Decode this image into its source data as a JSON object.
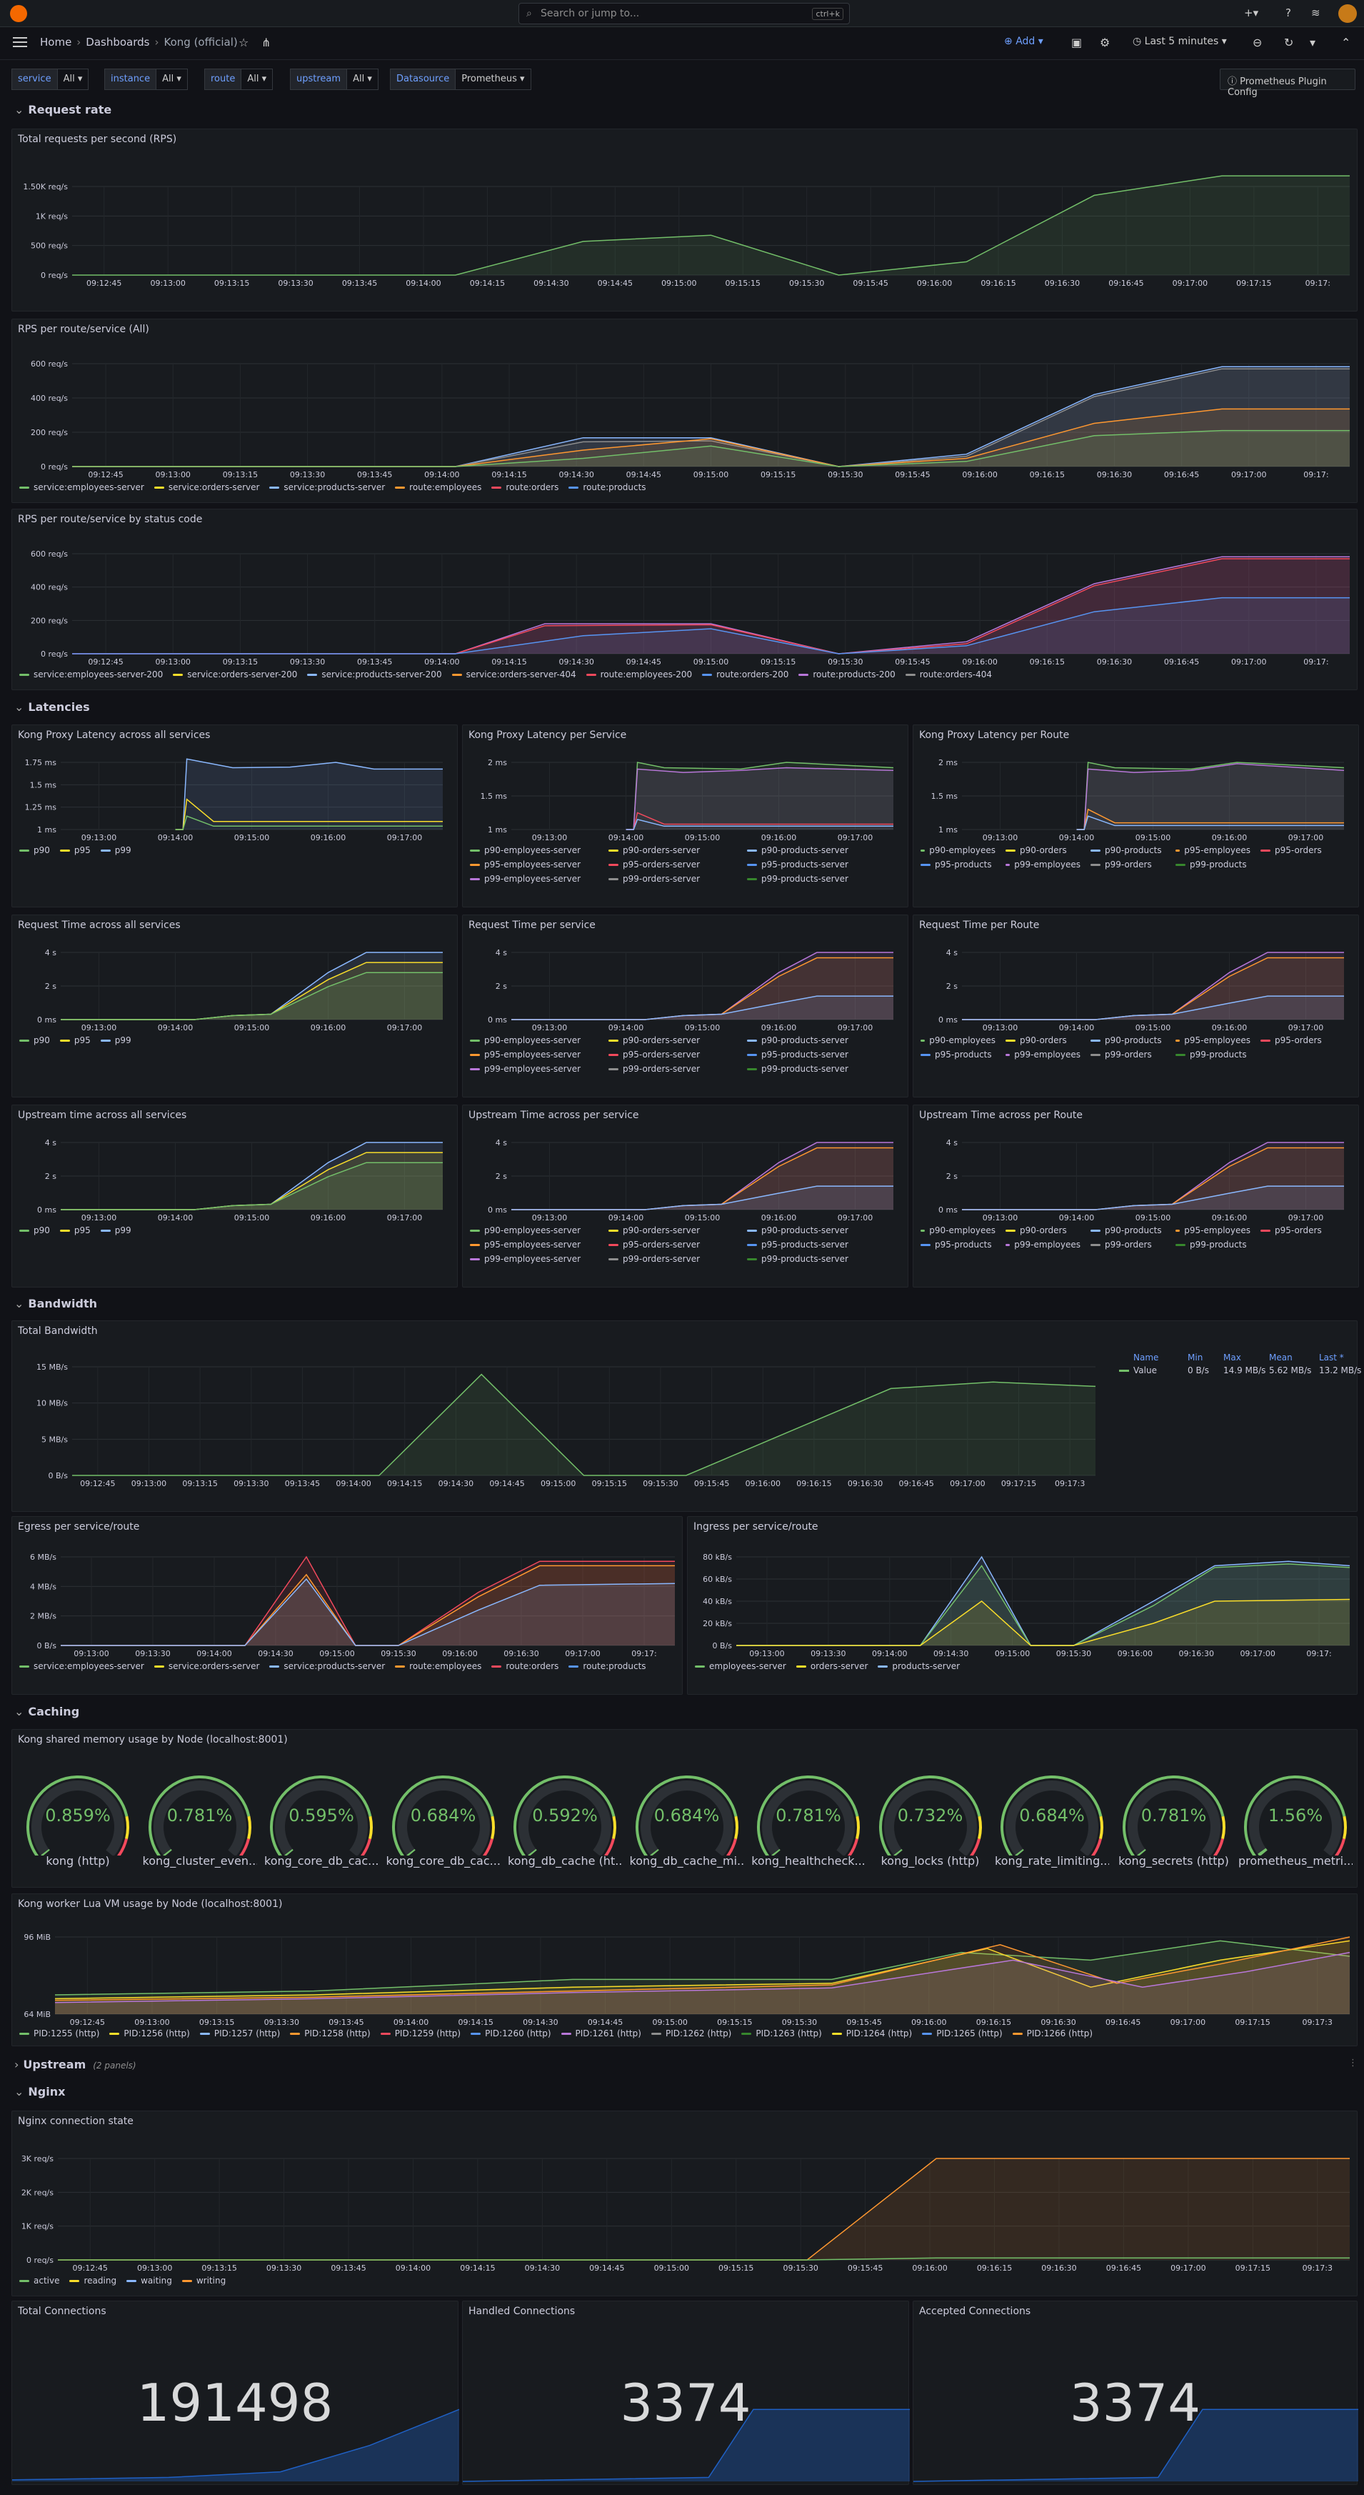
{
  "search": {
    "placeholder": "Search or jump to...",
    "shortcut": "ctrl+k"
  },
  "breadcrumb": {
    "home": "Home",
    "dashboards": "Dashboards",
    "current": "Kong (official)"
  },
  "toolbar": {
    "add_label": "Add",
    "time_range": "Last 5 minutes"
  },
  "variables": [
    {
      "label": "service",
      "value": "All"
    },
    {
      "label": "instance",
      "value": "All"
    },
    {
      "label": "route",
      "value": "All"
    },
    {
      "label": "upstream",
      "value": "All"
    },
    {
      "label": "Datasource",
      "value": "Prometheus"
    }
  ],
  "plugin_config_label": "Prometheus Plugin Config",
  "rows": {
    "request_rate": "Request rate",
    "latencies": "Latencies",
    "bandwidth": "Bandwidth",
    "caching": "Caching",
    "upstream": "Upstream",
    "upstream_sub": "(2 panels)",
    "nginx": "Nginx"
  },
  "colors": {
    "green": "#73bf69",
    "yellow": "#fade2a",
    "blue": "#8ab8ff",
    "orange": "#ff9830",
    "red": "#f2495c",
    "lblue": "#5794f2",
    "purple": "#b877d9",
    "grey": "#8e8e8e",
    "dgreen": "#37872d"
  },
  "panels": {
    "total_rps": {
      "title": "Total requests per second (RPS)",
      "ylabels": [
        "1.50K req/s",
        "1K req/s",
        "500 req/s",
        "0 req/s"
      ],
      "xlabels": [
        "09:12:45",
        "09:13:00",
        "09:13:15",
        "09:13:30",
        "09:13:45",
        "09:14:00",
        "09:14:15",
        "09:14:30",
        "09:14:45",
        "09:15:00",
        "09:15:15",
        "09:15:30",
        "09:15:45",
        "09:16:00",
        "09:16:15",
        "09:16:30",
        "09:16:45",
        "09:17:00",
        "09:17:15",
        "09:17:"
      ]
    },
    "rps_route": {
      "title": "RPS per route/service (All)",
      "ylabels": [
        "600 req/s",
        "400 req/s",
        "200 req/s",
        "0 req/s"
      ],
      "xlabels": [
        "09:12:45",
        "09:13:00",
        "09:13:15",
        "09:13:30",
        "09:13:45",
        "09:14:00",
        "09:14:15",
        "09:14:30",
        "09:14:45",
        "09:15:00",
        "09:15:15",
        "09:15:30",
        "09:15:45",
        "09:16:00",
        "09:16:15",
        "09:16:30",
        "09:16:45",
        "09:17:00",
        "09:17:"
      ],
      "legend": [
        {
          "name": "service:employees-server",
          "color": "#73bf69"
        },
        {
          "name": "service:orders-server",
          "color": "#fade2a"
        },
        {
          "name": "service:products-server",
          "color": "#8ab8ff"
        },
        {
          "name": "route:employees",
          "color": "#ff9830"
        },
        {
          "name": "route:orders",
          "color": "#f2495c"
        },
        {
          "name": "route:products",
          "color": "#5794f2"
        }
      ]
    },
    "rps_status": {
      "title": "RPS per route/service by status code",
      "ylabels": [
        "600 req/s",
        "400 req/s",
        "200 req/s",
        "0 req/s"
      ],
      "xlabels": [
        "09:12:45",
        "09:13:00",
        "09:13:15",
        "09:13:30",
        "09:13:45",
        "09:14:00",
        "09:14:15",
        "09:14:30",
        "09:14:45",
        "09:15:00",
        "09:15:15",
        "09:15:30",
        "09:15:45",
        "09:16:00",
        "09:16:15",
        "09:16:30",
        "09:16:45",
        "09:17:00",
        "09:17:"
      ],
      "legend": [
        {
          "name": "service:employees-server-200",
          "color": "#73bf69"
        },
        {
          "name": "service:orders-server-200",
          "color": "#fade2a"
        },
        {
          "name": "service:products-server-200",
          "color": "#8ab8ff"
        },
        {
          "name": "service:orders-server-404",
          "color": "#ff9830"
        },
        {
          "name": "route:employees-200",
          "color": "#f2495c"
        },
        {
          "name": "route:orders-200",
          "color": "#5794f2"
        },
        {
          "name": "route:products-200",
          "color": "#b877d9"
        },
        {
          "name": "route:orders-404",
          "color": "#8e8e8e"
        }
      ]
    },
    "proxy_all": {
      "title": "Kong Proxy Latency across all services",
      "ylabels": [
        "1.75 ms",
        "1.5 ms",
        "1.25 ms",
        "1 ms"
      ],
      "xlabels": [
        "09:13:00",
        "09:14:00",
        "09:15:00",
        "09:16:00",
        "09:17:00"
      ],
      "legend": [
        {
          "name": "p90",
          "color": "#73bf69"
        },
        {
          "name": "p95",
          "color": "#fade2a"
        },
        {
          "name": "p99",
          "color": "#8ab8ff"
        }
      ]
    },
    "proxy_service": {
      "title": "Kong Proxy Latency per Service",
      "ylabels": [
        "2 ms",
        "1.5 ms",
        "1 ms"
      ],
      "xlabels": [
        "09:13:00",
        "09:14:00",
        "09:15:00",
        "09:16:00",
        "09:17:00"
      ],
      "legend": [
        {
          "name": "p90-employees-server",
          "color": "#73bf69"
        },
        {
          "name": "p90-orders-server",
          "color": "#fade2a"
        },
        {
          "name": "p90-products-server",
          "color": "#8ab8ff"
        },
        {
          "name": "p95-employees-server",
          "color": "#ff9830"
        },
        {
          "name": "p95-orders-server",
          "color": "#f2495c"
        },
        {
          "name": "p95-products-server",
          "color": "#5794f2"
        },
        {
          "name": "p99-employees-server",
          "color": "#b877d9"
        },
        {
          "name": "p99-orders-server",
          "color": "#8e8e8e"
        },
        {
          "name": "p99-products-server",
          "color": "#37872d"
        }
      ]
    },
    "proxy_route": {
      "title": "Kong Proxy Latency per Route",
      "ylabels": [
        "2 ms",
        "1.5 ms",
        "1 ms"
      ],
      "xlabels": [
        "09:13:00",
        "09:14:00",
        "09:15:00",
        "09:16:00",
        "09:17:00"
      ],
      "legend": [
        {
          "name": "p90-employees",
          "color": "#73bf69"
        },
        {
          "name": "p90-orders",
          "color": "#fade2a"
        },
        {
          "name": "p90-products",
          "color": "#8ab8ff"
        },
        {
          "name": "p95-employees",
          "color": "#ff9830"
        },
        {
          "name": "p95-orders",
          "color": "#f2495c"
        },
        {
          "name": "p95-products",
          "color": "#5794f2"
        },
        {
          "name": "p99-employees",
          "color": "#b877d9"
        },
        {
          "name": "p99-orders",
          "color": "#8e8e8e"
        },
        {
          "name": "p99-products",
          "color": "#37872d"
        }
      ]
    },
    "req_all": {
      "title": "Request Time across all services",
      "ylabels": [
        "4 s",
        "2 s",
        "0 ms"
      ],
      "xlabels": [
        "09:13:00",
        "09:14:00",
        "09:15:00",
        "09:16:00",
        "09:17:00"
      ],
      "legend": [
        {
          "name": "p90",
          "color": "#73bf69"
        },
        {
          "name": "p95",
          "color": "#fade2a"
        },
        {
          "name": "p99",
          "color": "#8ab8ff"
        }
      ]
    },
    "req_service": {
      "title": "Request Time per service",
      "ylabels": [
        "4 s",
        "2 s",
        "0 ms"
      ],
      "xlabels": [
        "09:13:00",
        "09:14:00",
        "09:15:00",
        "09:16:00",
        "09:17:00"
      ],
      "legend": [
        {
          "name": "p90-employees-server",
          "color": "#73bf69"
        },
        {
          "name": "p90-orders-server",
          "color": "#fade2a"
        },
        {
          "name": "p90-products-server",
          "color": "#8ab8ff"
        },
        {
          "name": "p95-employees-server",
          "color": "#ff9830"
        },
        {
          "name": "p95-orders-server",
          "color": "#f2495c"
        },
        {
          "name": "p95-products-server",
          "color": "#5794f2"
        },
        {
          "name": "p99-employees-server",
          "color": "#b877d9"
        },
        {
          "name": "p99-orders-server",
          "color": "#8e8e8e"
        },
        {
          "name": "p99-products-server",
          "color": "#37872d"
        }
      ]
    },
    "req_route": {
      "title": "Request Time per Route",
      "ylabels": [
        "4 s",
        "2 s",
        "0 ms"
      ],
      "xlabels": [
        "09:13:00",
        "09:14:00",
        "09:15:00",
        "09:16:00",
        "09:17:00"
      ],
      "legend": [
        {
          "name": "p90-employees",
          "color": "#73bf69"
        },
        {
          "name": "p90-orders",
          "color": "#fade2a"
        },
        {
          "name": "p90-products",
          "color": "#8ab8ff"
        },
        {
          "name": "p95-employees",
          "color": "#ff9830"
        },
        {
          "name": "p95-orders",
          "color": "#f2495c"
        },
        {
          "name": "p95-products",
          "color": "#5794f2"
        },
        {
          "name": "p99-employees",
          "color": "#b877d9"
        },
        {
          "name": "p99-orders",
          "color": "#8e8e8e"
        },
        {
          "name": "p99-products",
          "color": "#37872d"
        }
      ]
    },
    "up_all": {
      "title": "Upstream time across all services",
      "ylabels": [
        "4 s",
        "2 s",
        "0 ms"
      ],
      "xlabels": [
        "09:13:00",
        "09:14:00",
        "09:15:00",
        "09:16:00",
        "09:17:00"
      ],
      "legend": [
        {
          "name": "p90",
          "color": "#73bf69"
        },
        {
          "name": "p95",
          "color": "#fade2a"
        },
        {
          "name": "p99",
          "color": "#8ab8ff"
        }
      ]
    },
    "up_service": {
      "title": "Upstream Time across per service",
      "ylabels": [
        "4 s",
        "2 s",
        "0 ms"
      ],
      "xlabels": [
        "09:13:00",
        "09:14:00",
        "09:15:00",
        "09:16:00",
        "09:17:00"
      ],
      "legend": [
        {
          "name": "p90-employees-server",
          "color": "#73bf69"
        },
        {
          "name": "p90-orders-server",
          "color": "#fade2a"
        },
        {
          "name": "p90-products-server",
          "color": "#8ab8ff"
        },
        {
          "name": "p95-employees-server",
          "color": "#ff9830"
        },
        {
          "name": "p95-orders-server",
          "color": "#f2495c"
        },
        {
          "name": "p95-products-server",
          "color": "#5794f2"
        },
        {
          "name": "p99-employees-server",
          "color": "#b877d9"
        },
        {
          "name": "p99-orders-server",
          "color": "#8e8e8e"
        },
        {
          "name": "p99-products-server",
          "color": "#37872d"
        }
      ]
    },
    "up_route": {
      "title": "Upstream Time across per Route",
      "ylabels": [
        "4 s",
        "2 s",
        "0 ms"
      ],
      "xlabels": [
        "09:13:00",
        "09:14:00",
        "09:15:00",
        "09:16:00",
        "09:17:00"
      ],
      "legend": [
        {
          "name": "p90-employees",
          "color": "#73bf69"
        },
        {
          "name": "p90-orders",
          "color": "#fade2a"
        },
        {
          "name": "p90-products",
          "color": "#8ab8ff"
        },
        {
          "name": "p95-employees",
          "color": "#ff9830"
        },
        {
          "name": "p95-orders",
          "color": "#f2495c"
        },
        {
          "name": "p95-products",
          "color": "#5794f2"
        },
        {
          "name": "p99-employees",
          "color": "#b877d9"
        },
        {
          "name": "p99-orders",
          "color": "#8e8e8e"
        },
        {
          "name": "p99-products",
          "color": "#37872d"
        }
      ]
    },
    "bandwidth": {
      "title": "Total Bandwidth",
      "ylabels": [
        "15 MB/s",
        "10 MB/s",
        "5 MB/s",
        "0 B/s"
      ],
      "xlabels": [
        "09:12:45",
        "09:13:00",
        "09:13:15",
        "09:13:30",
        "09:13:45",
        "09:14:00",
        "09:14:15",
        "09:14:30",
        "09:14:45",
        "09:15:00",
        "09:15:15",
        "09:15:30",
        "09:15:45",
        "09:16:00",
        "09:16:15",
        "09:16:30",
        "09:16:45",
        "09:17:00",
        "09:17:15",
        "09:17:3"
      ],
      "table_headers": [
        "Name",
        "Min",
        "Max",
        "Mean",
        "Last *"
      ],
      "table_row": [
        "Value",
        "0 B/s",
        "14.9 MB/s",
        "5.62 MB/s",
        "13.2 MB/s"
      ]
    },
    "egress": {
      "title": "Egress per service/route",
      "ylabels": [
        "6 MB/s",
        "4 MB/s",
        "2 MB/s",
        "0 B/s"
      ],
      "xlabels": [
        "09:13:00",
        "09:13:30",
        "09:14:00",
        "09:14:30",
        "09:15:00",
        "09:15:30",
        "09:16:00",
        "09:16:30",
        "09:17:00",
        "09:17:"
      ],
      "legend": [
        {
          "name": "service:employees-server",
          "color": "#73bf69"
        },
        {
          "name": "service:orders-server",
          "color": "#fade2a"
        },
        {
          "name": "service:products-server",
          "color": "#8ab8ff"
        },
        {
          "name": "route:employees",
          "color": "#ff9830"
        },
        {
          "name": "route:orders",
          "color": "#f2495c"
        },
        {
          "name": "route:products",
          "color": "#5794f2"
        }
      ]
    },
    "ingress": {
      "title": "Ingress per service/route",
      "ylabels": [
        "80 kB/s",
        "60 kB/s",
        "40 kB/s",
        "20 kB/s",
        "0 B/s"
      ],
      "xlabels": [
        "09:13:00",
        "09:13:30",
        "09:14:00",
        "09:14:30",
        "09:15:00",
        "09:15:30",
        "09:16:00",
        "09:16:30",
        "09:17:00",
        "09:17:"
      ],
      "legend": [
        {
          "name": "employees-server",
          "color": "#73bf69"
        },
        {
          "name": "orders-server",
          "color": "#fade2a"
        },
        {
          "name": "products-server",
          "color": "#8ab8ff"
        }
      ]
    },
    "shm": {
      "title": "Kong shared memory usage by Node (localhost:8001)",
      "gauges": [
        {
          "value": "0.859%",
          "label": "kong (http)",
          "pct": 0.00859
        },
        {
          "value": "0.781%",
          "label": "kong_cluster_even...",
          "pct": 0.00781
        },
        {
          "value": "0.595%",
          "label": "kong_core_db_cac...",
          "pct": 0.00595
        },
        {
          "value": "0.684%",
          "label": "kong_core_db_cac...",
          "pct": 0.00684
        },
        {
          "value": "0.592%",
          "label": "kong_db_cache (ht...",
          "pct": 0.00592
        },
        {
          "value": "0.684%",
          "label": "kong_db_cache_mi...",
          "pct": 0.00684
        },
        {
          "value": "0.781%",
          "label": "kong_healthcheck...",
          "pct": 0.00781
        },
        {
          "value": "0.732%",
          "label": "kong_locks (http)",
          "pct": 0.00732
        },
        {
          "value": "0.684%",
          "label": "kong_rate_limiting...",
          "pct": 0.00684
        },
        {
          "value": "0.781%",
          "label": "kong_secrets (http)",
          "pct": 0.00781
        },
        {
          "value": "1.56%",
          "label": "prometheus_metri...",
          "pct": 0.0156
        }
      ]
    },
    "lua": {
      "title": "Kong worker Lua VM usage by Node (localhost:8001)",
      "ylabels": [
        "96 MiB",
        "64 MiB"
      ],
      "xlabels": [
        "09:12:45",
        "09:13:00",
        "09:13:15",
        "09:13:30",
        "09:13:45",
        "09:14:00",
        "09:14:15",
        "09:14:30",
        "09:14:45",
        "09:15:00",
        "09:15:15",
        "09:15:30",
        "09:15:45",
        "09:16:00",
        "09:16:15",
        "09:16:30",
        "09:16:45",
        "09:17:00",
        "09:17:15",
        "09:17:3"
      ],
      "legend": [
        {
          "name": "PID:1255 (http)",
          "color": "#73bf69"
        },
        {
          "name": "PID:1256 (http)",
          "color": "#fade2a"
        },
        {
          "name": "PID:1257 (http)",
          "color": "#8ab8ff"
        },
        {
          "name": "PID:1258 (http)",
          "color": "#ff9830"
        },
        {
          "name": "PID:1259 (http)",
          "color": "#f2495c"
        },
        {
          "name": "PID:1260 (http)",
          "color": "#5794f2"
        },
        {
          "name": "PID:1261 (http)",
          "color": "#b877d9"
        },
        {
          "name": "PID:1262 (http)",
          "color": "#8e8e8e"
        },
        {
          "name": "PID:1263 (http)",
          "color": "#37872d"
        },
        {
          "name": "PID:1264 (http)",
          "color": "#fade2a"
        },
        {
          "name": "PID:1265 (http)",
          "color": "#5794f2"
        },
        {
          "name": "PID:1266 (http)",
          "color": "#ff9830"
        }
      ]
    },
    "nginx": {
      "title": "Nginx connection state",
      "ylabels": [
        "3K req/s",
        "2K req/s",
        "1K req/s",
        "0 req/s"
      ],
      "xlabels": [
        "09:12:45",
        "09:13:00",
        "09:13:15",
        "09:13:30",
        "09:13:45",
        "09:14:00",
        "09:14:15",
        "09:14:30",
        "09:14:45",
        "09:15:00",
        "09:15:15",
        "09:15:30",
        "09:15:45",
        "09:16:00",
        "09:16:15",
        "09:16:30",
        "09:16:45",
        "09:17:00",
        "09:17:15",
        "09:17:3"
      ],
      "legend": [
        {
          "name": "active",
          "color": "#73bf69"
        },
        {
          "name": "reading",
          "color": "#fade2a"
        },
        {
          "name": "waiting",
          "color": "#8ab8ff"
        },
        {
          "name": "writing",
          "color": "#ff9830"
        }
      ]
    },
    "total_conn": {
      "title": "Total Connections",
      "value": "191498"
    },
    "handled_conn": {
      "title": "Handled Connections",
      "value": "3374"
    },
    "accepted_conn": {
      "title": "Accepted Connections",
      "value": "3374"
    }
  }
}
